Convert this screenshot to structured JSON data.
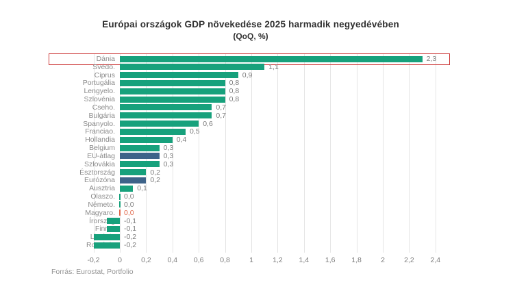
{
  "title": "Európai országok GDP növekedése 2025 harmadik negyedévében",
  "subtitle": "(QoQ, %)",
  "source": "Forrás: Eurostat, Portfolio",
  "colors": {
    "bar_green": "#17a17c",
    "bar_blue": "#3d6389",
    "bar_red": "#e0684b",
    "highlight_box_red": "#cd3a3a",
    "category_label_gray": "#8a8a8a",
    "value_label_gray": "#7d7d7d",
    "title_dark": "#2f2f2f",
    "gridline_gray": "#e4e4e4"
  },
  "chart_data": {
    "type": "bar",
    "orientation": "horizontal",
    "title": "Európai országok GDP növekedése 2025 harmadik negyedévében",
    "subtitle": "(QoQ, %)",
    "categories": [
      "Dánia",
      "Svédo.",
      "Ciprus",
      "Portugália",
      "Lengyelo.",
      "Szlovénia",
      "Cseho.",
      "Bulgária",
      "Spanyolo.",
      "Franciao.",
      "Hollandia",
      "Belgium",
      "EU-átlag",
      "Szlovákia",
      "Észtország",
      "Eurózóna",
      "Ausztria",
      "Olaszo.",
      "Németo.",
      "Magyaro.",
      "Írország",
      "Finno.",
      "Litvánia",
      "Románia"
    ],
    "values": [
      2.3,
      1.1,
      0.9,
      0.8,
      0.8,
      0.8,
      0.7,
      0.7,
      0.6,
      0.5,
      0.4,
      0.3,
      0.3,
      0.3,
      0.2,
      0.2,
      0.1,
      0.0,
      0.0,
      0.0,
      -0.1,
      -0.1,
      -0.2,
      -0.2
    ],
    "value_labels": [
      "2,3",
      "1,1",
      "0,9",
      "0,8",
      "0,8",
      "0,8",
      "0,7",
      "0,7",
      "0,6",
      "0,5",
      "0,4",
      "0,3",
      "0,3",
      "0,3",
      "0,2",
      "0,2",
      "0,1",
      "0,0",
      "0,0",
      "0,0",
      "-0,1",
      "-0,1",
      "-0,2",
      "-0,2"
    ],
    "bar_styles": [
      "green",
      "green",
      "green",
      "green",
      "green",
      "green",
      "green",
      "green",
      "green",
      "green",
      "green",
      "green",
      "blue",
      "green",
      "green",
      "blue",
      "green",
      "green",
      "green",
      "red",
      "green",
      "green",
      "green",
      "green"
    ],
    "highlighted_category": "Dánia",
    "x_tick_labels": [
      "-0,2",
      "0",
      "0,2",
      "0,4",
      "0,6",
      "0,8",
      "1",
      "1,2",
      "1,4",
      "1,6",
      "1,8",
      "2",
      "2,2",
      "2,4"
    ],
    "x_tick_values": [
      -0.2,
      0,
      0.2,
      0.4,
      0.6,
      0.8,
      1,
      1.2,
      1.4,
      1.6,
      1.8,
      2,
      2.2,
      2.4
    ],
    "xlim": [
      -0.2,
      2.4
    ],
    "grid": "vertical",
    "legend": "none",
    "xlabel": "",
    "ylabel": ""
  }
}
